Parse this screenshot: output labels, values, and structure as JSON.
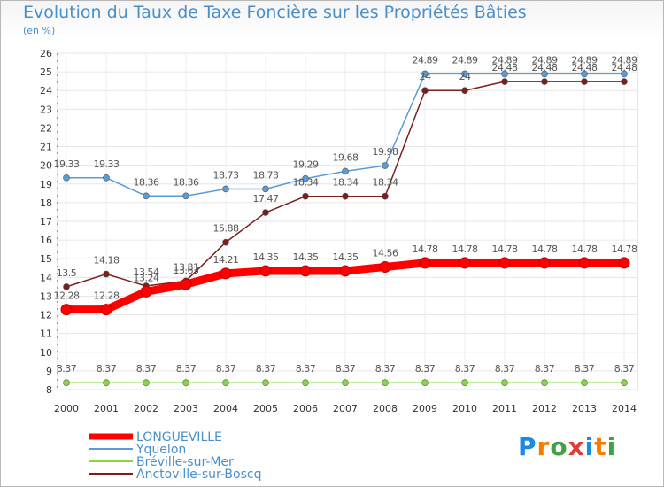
{
  "chart_data": {
    "type": "line",
    "title": "Evolution du Taux de Taxe Foncière sur les Propriétés Bâties",
    "ylabel": "(en %)",
    "xlabel": "",
    "ylim": [
      8,
      26
    ],
    "yticks": [
      "8",
      "9",
      "10",
      "11",
      "12",
      "13",
      "14",
      "15",
      "16",
      "17",
      "18",
      "19",
      "20",
      "21",
      "22",
      "23",
      "24",
      "25",
      "26"
    ],
    "x": [
      "2000",
      "2001",
      "2002",
      "2003",
      "2004",
      "2005",
      "2006",
      "2007",
      "2008",
      "2009",
      "2010",
      "2011",
      "2012",
      "2013",
      "2014"
    ],
    "series": [
      {
        "name": "LONGUEVILLE",
        "color": "#ff0000",
        "values": [
          12.28,
          12.28,
          13.24,
          13.63,
          14.21,
          14.35,
          14.35,
          14.35,
          14.56,
          14.78,
          14.78,
          14.78,
          14.78,
          14.78,
          14.78
        ],
        "labels": [
          "12.28",
          "12.28",
          "13.24",
          "13.63",
          "14.21",
          "14.35",
          "14.35",
          "14.35",
          "14.56",
          "14.78",
          "14.78",
          "14.78",
          "14.78",
          "14.78",
          "14.78"
        ]
      },
      {
        "name": "Yquelon",
        "color": "#5b9bd5",
        "values": [
          19.33,
          19.33,
          18.36,
          18.36,
          18.73,
          18.73,
          19.29,
          19.68,
          19.98,
          24.89,
          24.89,
          24.89,
          24.89,
          24.89,
          24.89
        ],
        "labels": [
          "19.33",
          "19.33",
          "18.36",
          "18.36",
          "18.73",
          "18.73",
          "19.29",
          "19.68",
          "19.98",
          "24.89",
          "24.89",
          "24.89",
          "24.89",
          "24.89",
          "24.89"
        ]
      },
      {
        "name": "Bréville-sur-Mer",
        "color": "#8bd44a",
        "values": [
          8.37,
          8.37,
          8.37,
          8.37,
          8.37,
          8.37,
          8.37,
          8.37,
          8.37,
          8.37,
          8.37,
          8.37,
          8.37,
          8.37,
          8.37
        ],
        "labels": [
          "8.37",
          "8.37",
          "8.37",
          "8.37",
          "8.37",
          "8.37",
          "8.37",
          "8.37",
          "8.37",
          "8.37",
          "8.37",
          "8.37",
          "8.37",
          "8.37",
          "8.37"
        ]
      },
      {
        "name": "Anctoville-sur-Boscq",
        "color": "#7a1e1e",
        "values": [
          13.5,
          14.18,
          13.54,
          13.81,
          15.88,
          17.47,
          18.34,
          18.34,
          18.34,
          24,
          24,
          24.48,
          24.48,
          24.48,
          24.48
        ],
        "labels": [
          "13.5",
          "14.18",
          "13.54",
          "13.81",
          "15.88",
          "17.47",
          "18.34",
          "18.34",
          "18.34",
          "24",
          "24",
          "24.48",
          "24.48",
          "24.48",
          "24.48"
        ]
      }
    ],
    "legend_position": "bottom-left"
  },
  "brand": {
    "letters": [
      "P",
      "r",
      "o",
      "x",
      "i",
      "t",
      "i"
    ],
    "colors": [
      "#1e88e5",
      "#f57c00",
      "#43a047",
      "#e53935",
      "#1e88e5",
      "#f57c00",
      "#43a047"
    ]
  }
}
